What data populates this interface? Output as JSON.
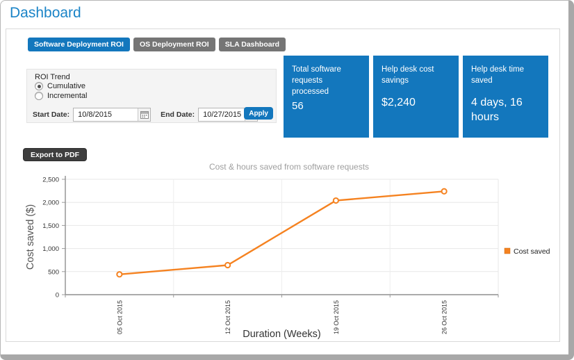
{
  "window": {
    "title": "Dashboard"
  },
  "tabs": [
    {
      "label": "Software Deployment ROI",
      "active": true
    },
    {
      "label": "OS Deployment ROI",
      "active": false
    },
    {
      "label": "SLA Dashboard",
      "active": false
    }
  ],
  "filters": {
    "group_label": "ROI Trend",
    "options": [
      {
        "label": "Cumulative",
        "selected": true
      },
      {
        "label": "Incremental",
        "selected": false
      }
    ],
    "start_date": {
      "label": "Start Date:",
      "value": "10/8/2015"
    },
    "end_date": {
      "label": "End Date:",
      "value": "10/27/2015"
    },
    "apply_label": "Apply"
  },
  "cards": [
    {
      "label": "Total software requests processed",
      "value": "56"
    },
    {
      "label": "Help desk cost savings",
      "value": "$2,240"
    },
    {
      "label": "Help desk time saved",
      "value": "4 days, 16 hours"
    }
  ],
  "export_button_label": "Export to PDF",
  "chart_data": {
    "type": "line",
    "title": "Cost & hours saved from software requests",
    "xlabel": "Duration (Weeks)",
    "ylabel": "Cost saved ($)",
    "categories": [
      "05 Oct 2015",
      "12 Oct 2015",
      "19 Oct 2015",
      "26 Oct 2015"
    ],
    "series": [
      {
        "name": "Cost saved",
        "color": "#f58220",
        "values": [
          440,
          640,
          2040,
          2240
        ]
      }
    ],
    "ylim": [
      0,
      2500
    ],
    "ytick_step": 500,
    "ytick_labels": [
      "0",
      "500",
      "1,000",
      "1,500",
      "2,000",
      "2,500"
    ],
    "grid": true,
    "legend_position": "right",
    "point_style": "open-circle"
  },
  "colors": {
    "heading_blue": "#1b84c7",
    "primary_blue": "#1377bd",
    "tab_inactive_gray": "#757575",
    "export_button_dark": "#3e3e3e",
    "series_orange": "#f58220",
    "filter_panel_background": "#f4f4f4"
  }
}
